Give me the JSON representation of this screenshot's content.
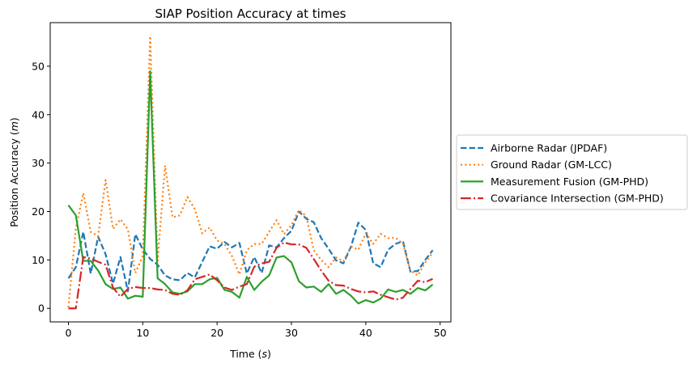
{
  "chart_data": {
    "type": "line",
    "title": "SIAP Position Accuracy at times",
    "xlabel": "Time",
    "xlabel_unit": "s",
    "ylabel": "Position Accuracy",
    "ylabel_unit": "m",
    "xlim": [
      -2.45,
      51.45
    ],
    "ylim": [
      -2.8,
      59.0
    ],
    "xticks": [
      0,
      10,
      20,
      30,
      40,
      50
    ],
    "yticks": [
      0,
      10,
      20,
      30,
      40,
      50
    ],
    "grid": false,
    "legend_position": "center-right-outside",
    "series": [
      {
        "name": "Airborne Radar (JPDAF)",
        "color": "#1f77b4",
        "style": "dashed",
        "x": [
          0,
          1,
          2,
          3,
          4,
          5,
          6,
          7,
          8,
          9,
          10,
          11,
          12,
          13,
          14,
          15,
          16,
          17,
          18,
          19,
          20,
          21,
          22,
          23,
          24,
          25,
          26,
          27,
          28,
          29,
          30,
          31,
          32,
          33,
          34,
          35,
          36,
          37,
          38,
          39,
          40,
          41,
          42,
          43,
          44,
          45,
          46,
          47,
          48,
          49
        ],
        "values": [
          6.2,
          8.5,
          15.8,
          7.2,
          14.8,
          11.2,
          5.1,
          10.6,
          3.5,
          15.3,
          12.2,
          10.2,
          9.0,
          6.8,
          6.0,
          5.8,
          7.3,
          6.4,
          9.6,
          12.8,
          12.3,
          13.7,
          12.6,
          13.5,
          7.2,
          10.6,
          7.3,
          13.0,
          12.6,
          14.5,
          16.0,
          20.0,
          18.5,
          17.8,
          14.5,
          12.3,
          9.9,
          9.3,
          12.7,
          17.7,
          16.2,
          9.3,
          8.5,
          12.1,
          13.3,
          13.9,
          7.6,
          7.7,
          10.0,
          12.0
        ]
      },
      {
        "name": "Ground Radar (GM-LCC)",
        "color": "#ff7f0e",
        "style": "dotted",
        "x": [
          0,
          1,
          2,
          3,
          4,
          5,
          6,
          7,
          8,
          9,
          10,
          11,
          12,
          13,
          14,
          15,
          16,
          17,
          18,
          19,
          20,
          21,
          22,
          23,
          24,
          25,
          26,
          27,
          28,
          29,
          30,
          31,
          32,
          33,
          34,
          35,
          36,
          37,
          38,
          39,
          40,
          41,
          42,
          43,
          44,
          45,
          46,
          47,
          48,
          49
        ],
        "values": [
          0.2,
          16.5,
          23.8,
          15.8,
          14.9,
          26.5,
          16.4,
          18.4,
          16.3,
          7.3,
          10.8,
          56.2,
          9.8,
          29.5,
          18.8,
          19.2,
          23.0,
          20.5,
          15.5,
          16.7,
          14.0,
          13.3,
          10.8,
          7.0,
          12.0,
          13.3,
          13.3,
          15.8,
          18.2,
          15.3,
          17.2,
          20.3,
          19.0,
          12.0,
          10.0,
          8.5,
          10.5,
          9.7,
          12.8,
          12.1,
          15.5,
          13.3,
          15.4,
          14.5,
          14.6,
          13.3,
          7.8,
          6.8,
          9.5,
          11.5
        ]
      },
      {
        "name": "Measurement Fusion (GM-PHD)",
        "color": "#2ca02c",
        "style": "solid",
        "x": [
          0,
          1,
          2,
          3,
          4,
          5,
          6,
          7,
          8,
          9,
          10,
          11,
          12,
          13,
          14,
          15,
          16,
          17,
          18,
          19,
          20,
          21,
          22,
          23,
          24,
          25,
          26,
          27,
          28,
          29,
          30,
          31,
          32,
          33,
          34,
          35,
          36,
          37,
          38,
          39,
          40,
          41,
          42,
          43,
          44,
          45,
          46,
          47,
          48,
          49
        ],
        "values": [
          21.3,
          19.2,
          9.8,
          9.8,
          7.8,
          5.0,
          4.0,
          4.3,
          2.0,
          2.6,
          2.4,
          49.0,
          6.2,
          5.0,
          3.3,
          3.0,
          3.5,
          5.0,
          5.0,
          6.0,
          6.3,
          3.8,
          3.4,
          2.2,
          6.5,
          3.8,
          5.5,
          6.8,
          10.5,
          10.8,
          9.5,
          5.6,
          4.3,
          4.5,
          3.4,
          5.0,
          3.0,
          3.8,
          2.6,
          1.0,
          1.7,
          1.2,
          2.0,
          3.9,
          3.4,
          3.8,
          3.0,
          4.2,
          3.7,
          4.9
        ]
      },
      {
        "name": "Covariance Intersection (GM-PHD)",
        "color": "#d62728",
        "style": "dashdot",
        "x": [
          0,
          1,
          2,
          3,
          4,
          5,
          6,
          7,
          8,
          9,
          10,
          11,
          12,
          13,
          14,
          15,
          16,
          17,
          18,
          19,
          20,
          21,
          22,
          23,
          24,
          25,
          26,
          27,
          28,
          29,
          30,
          31,
          32,
          33,
          34,
          35,
          36,
          37,
          38,
          39,
          40,
          41,
          42,
          43,
          44,
          45,
          46,
          47,
          48,
          49
        ],
        "values": [
          0.0,
          0.0,
          10.6,
          10.3,
          9.6,
          9.0,
          4.3,
          2.4,
          4.0,
          4.4,
          4.2,
          4.2,
          3.9,
          3.8,
          3.0,
          2.8,
          3.7,
          6.0,
          6.5,
          7.0,
          5.8,
          4.3,
          3.8,
          4.5,
          5.0,
          8.6,
          9.3,
          9.6,
          12.5,
          13.6,
          13.2,
          13.2,
          12.5,
          10.2,
          7.8,
          5.7,
          4.8,
          4.7,
          4.0,
          3.5,
          3.3,
          3.5,
          2.8,
          2.3,
          1.8,
          2.2,
          4.0,
          5.7,
          5.4,
          6.1
        ]
      }
    ]
  }
}
